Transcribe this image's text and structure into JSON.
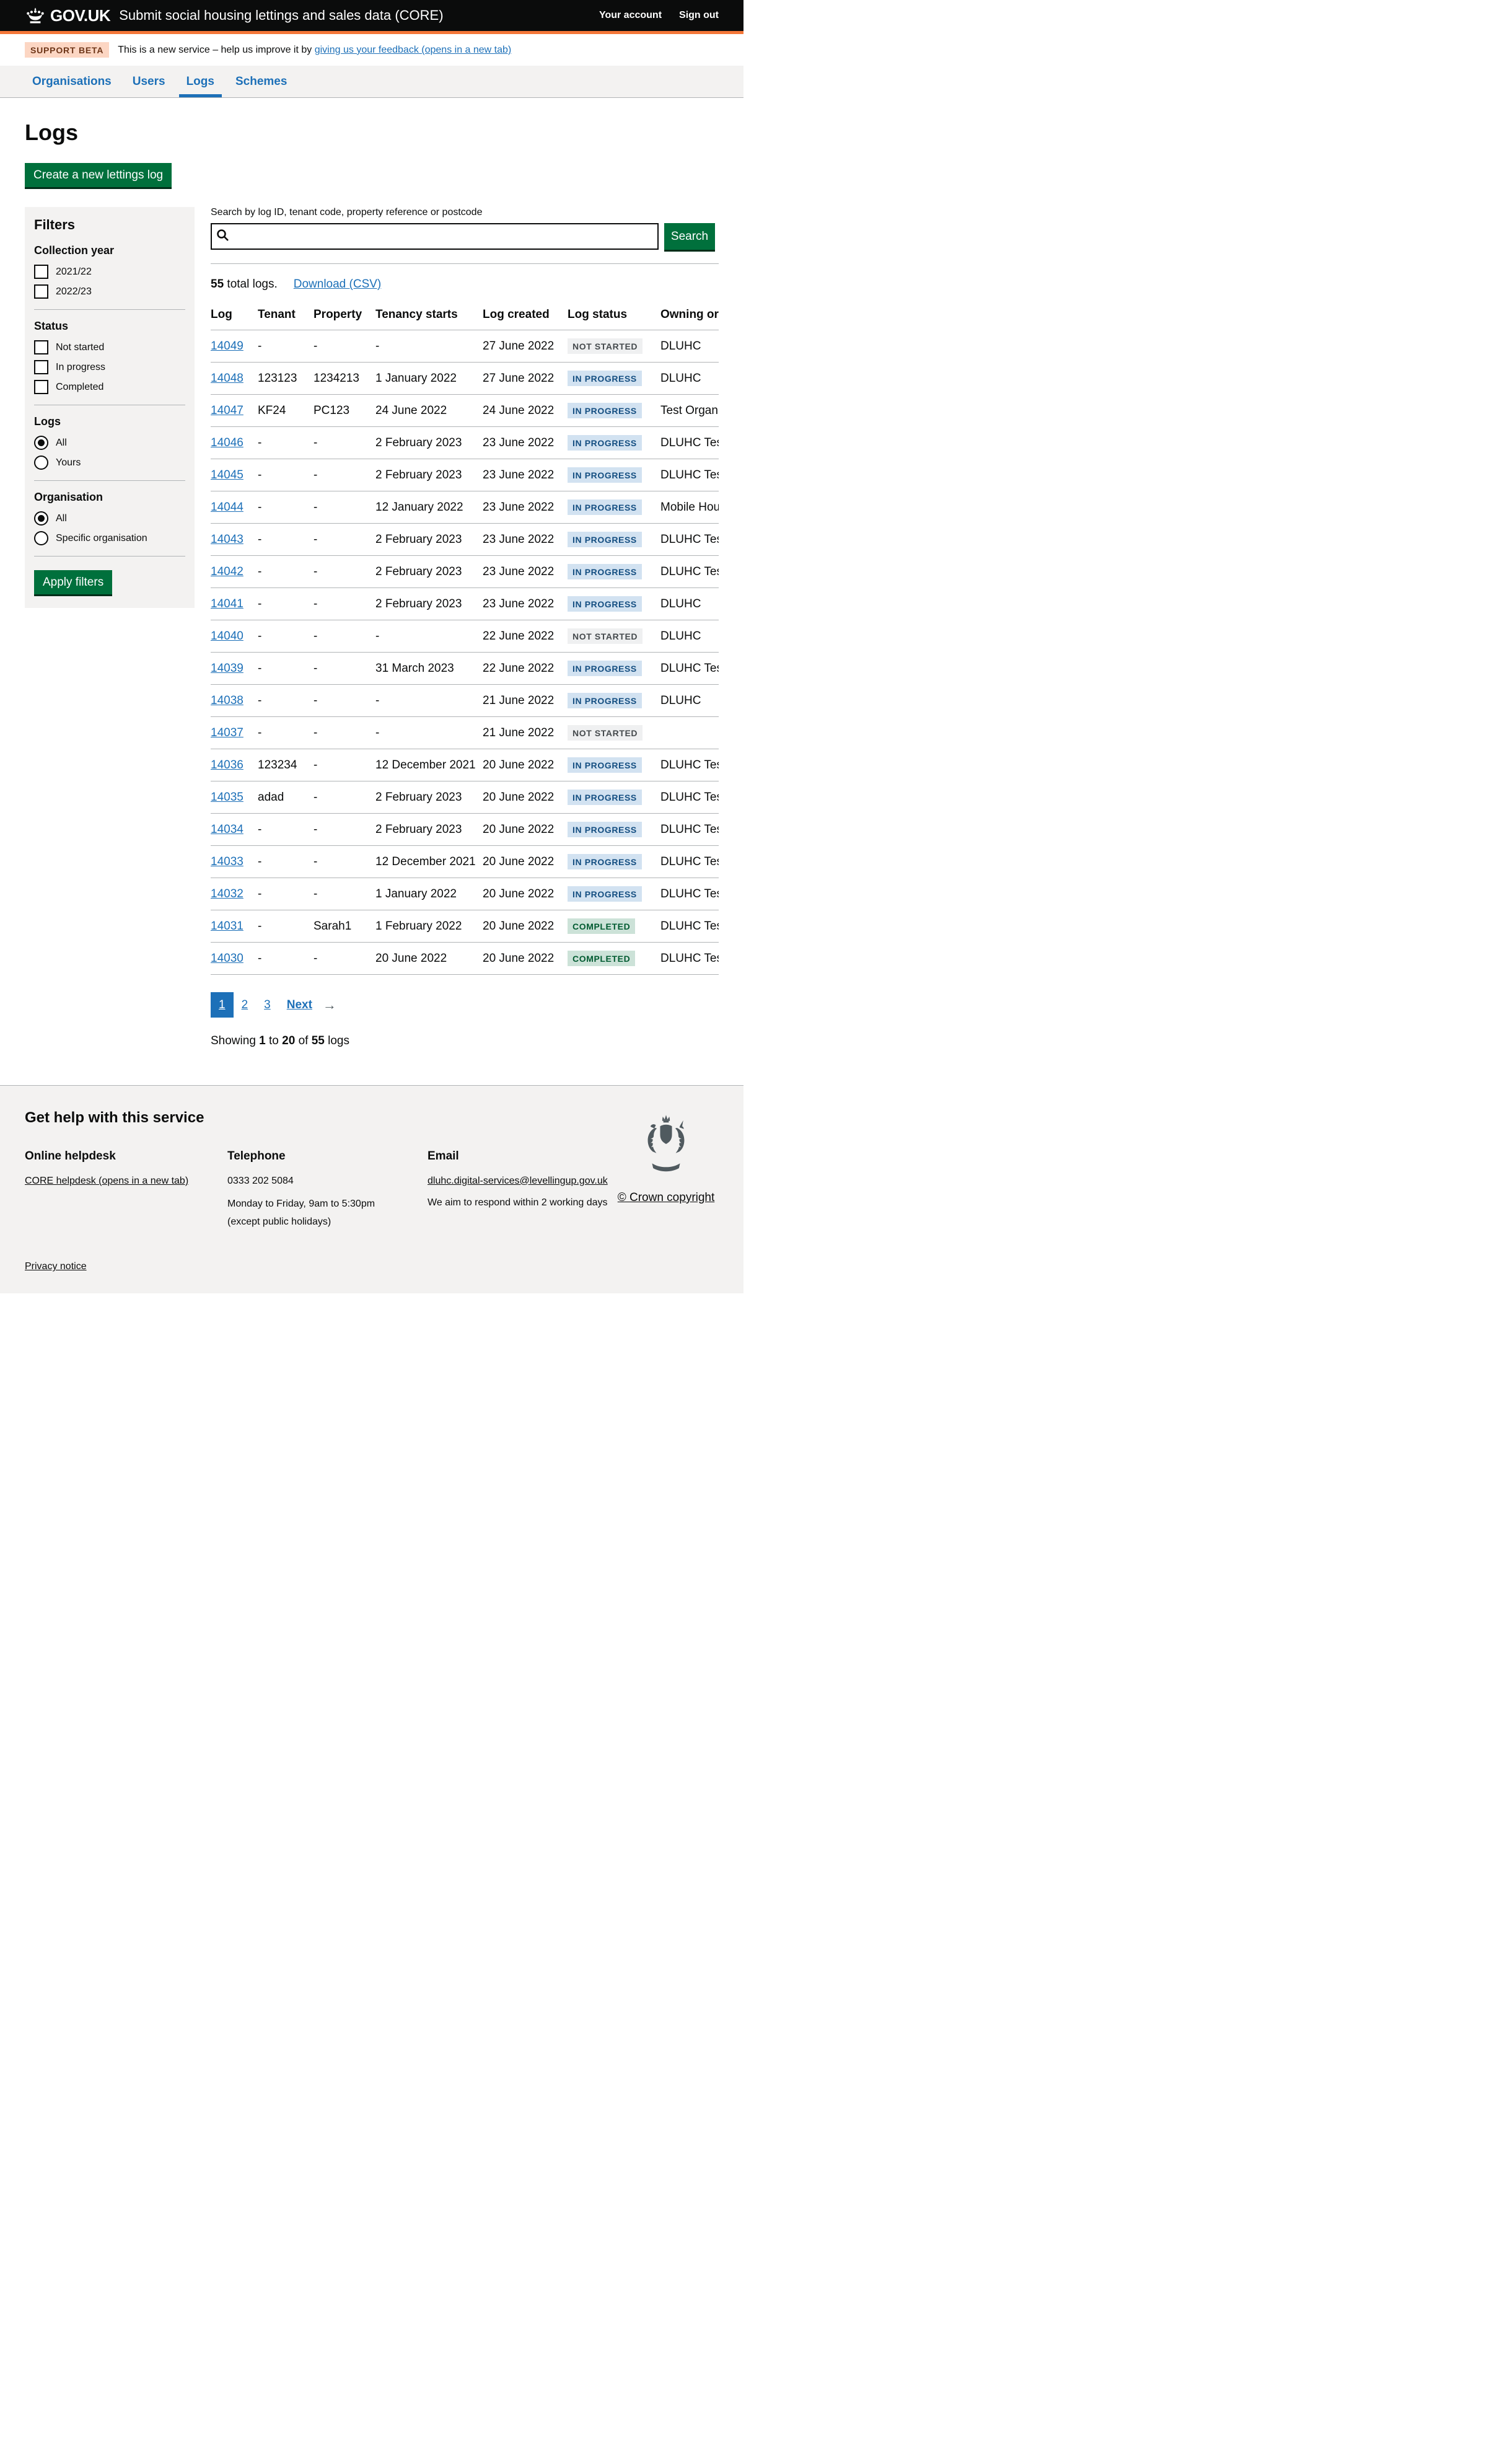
{
  "header": {
    "logo": "GOV.UK",
    "service_name": "Submit social housing lettings and sales data (CORE)",
    "account_link": "Your account",
    "signout_link": "Sign out"
  },
  "phase_banner": {
    "tag": "SUPPORT BETA",
    "text": "This is a new service – help us improve it by ",
    "link_text": "giving us your feedback (opens in a new tab)"
  },
  "nav": {
    "items": [
      {
        "label": "Organisations"
      },
      {
        "label": "Users"
      },
      {
        "label": "Logs"
      },
      {
        "label": "Schemes"
      }
    ]
  },
  "page": {
    "title": "Logs",
    "create_button": "Create a new lettings log"
  },
  "filters": {
    "heading": "Filters",
    "groups": [
      {
        "label": "Collection year",
        "options": [
          {
            "label": "2021/22"
          },
          {
            "label": "2022/23"
          }
        ]
      },
      {
        "label": "Status",
        "options": [
          {
            "label": "Not started"
          },
          {
            "label": "In progress"
          },
          {
            "label": "Completed"
          }
        ]
      },
      {
        "label": "Logs",
        "options": [
          {
            "label": "All"
          },
          {
            "label": "Yours"
          }
        ]
      },
      {
        "label": "Organisation",
        "options": [
          {
            "label": "All"
          },
          {
            "label": "Specific organisation"
          }
        ]
      }
    ],
    "apply_button": "Apply filters"
  },
  "search": {
    "label": "Search by log ID, tenant code, property reference or postcode",
    "value": "",
    "button": "Search"
  },
  "results": {
    "count": "55",
    "count_suffix": " total logs.",
    "download_link": "Download (CSV)"
  },
  "table": {
    "headers": [
      "Log",
      "Tenant",
      "Property",
      "Tenancy starts",
      "Log created",
      "Log status",
      "Owning organisation"
    ],
    "rows": [
      {
        "log": "14049",
        "tenant": "-",
        "property": "-",
        "tenancy_starts": "-",
        "log_created": "27 June 2022",
        "status": {
          "label": "NOT STARTED",
          "type": "grey"
        },
        "owning": "DLUHC"
      },
      {
        "log": "14048",
        "tenant": "123123",
        "property": "1234213",
        "tenancy_starts": "1 January 2022",
        "log_created": "27 June 2022",
        "status": {
          "label": "IN PROGRESS",
          "type": "blue"
        },
        "owning": "DLUHC"
      },
      {
        "log": "14047",
        "tenant": "KF24",
        "property": "PC123",
        "tenancy_starts": "24 June 2022",
        "log_created": "24 June 2022",
        "status": {
          "label": "IN PROGRESS",
          "type": "blue"
        },
        "owning": "Test Organ"
      },
      {
        "log": "14046",
        "tenant": "-",
        "property": "-",
        "tenancy_starts": "2 February 2023",
        "log_created": "23 June 2022",
        "status": {
          "label": "IN PROGRESS",
          "type": "blue"
        },
        "owning": "DLUHC Tes"
      },
      {
        "log": "14045",
        "tenant": "-",
        "property": "-",
        "tenancy_starts": "2 February 2023",
        "log_created": "23 June 2022",
        "status": {
          "label": "IN PROGRESS",
          "type": "blue"
        },
        "owning": "DLUHC Tes"
      },
      {
        "log": "14044",
        "tenant": "-",
        "property": "-",
        "tenancy_starts": "12 January 2022",
        "log_created": "23 June 2022",
        "status": {
          "label": "IN PROGRESS",
          "type": "blue"
        },
        "owning": "Mobile Hou"
      },
      {
        "log": "14043",
        "tenant": "-",
        "property": "-",
        "tenancy_starts": "2 February 2023",
        "log_created": "23 June 2022",
        "status": {
          "label": "IN PROGRESS",
          "type": "blue"
        },
        "owning": "DLUHC Tes"
      },
      {
        "log": "14042",
        "tenant": "-",
        "property": "-",
        "tenancy_starts": "2 February 2023",
        "log_created": "23 June 2022",
        "status": {
          "label": "IN PROGRESS",
          "type": "blue"
        },
        "owning": "DLUHC Tes"
      },
      {
        "log": "14041",
        "tenant": "-",
        "property": "-",
        "tenancy_starts": "2 February 2023",
        "log_created": "23 June 2022",
        "status": {
          "label": "IN PROGRESS",
          "type": "blue"
        },
        "owning": "DLUHC"
      },
      {
        "log": "14040",
        "tenant": "-",
        "property": "-",
        "tenancy_starts": "-",
        "log_created": "22 June 2022",
        "status": {
          "label": "NOT STARTED",
          "type": "grey"
        },
        "owning": "DLUHC"
      },
      {
        "log": "14039",
        "tenant": "-",
        "property": "-",
        "tenancy_starts": "31 March 2023",
        "log_created": "22 June 2022",
        "status": {
          "label": "IN PROGRESS",
          "type": "blue"
        },
        "owning": "DLUHC Tes"
      },
      {
        "log": "14038",
        "tenant": "-",
        "property": "-",
        "tenancy_starts": "-",
        "log_created": "21 June 2022",
        "status": {
          "label": "IN PROGRESS",
          "type": "blue"
        },
        "owning": "DLUHC"
      },
      {
        "log": "14037",
        "tenant": "-",
        "property": "-",
        "tenancy_starts": "-",
        "log_created": "21 June 2022",
        "status": {
          "label": "NOT STARTED",
          "type": "grey"
        },
        "owning": ""
      },
      {
        "log": "14036",
        "tenant": "123234",
        "property": "-",
        "tenancy_starts": "12 December 2021",
        "log_created": "20 June 2022",
        "status": {
          "label": "IN PROGRESS",
          "type": "blue"
        },
        "owning": "DLUHC Tes"
      },
      {
        "log": "14035",
        "tenant": "adad",
        "property": "-",
        "tenancy_starts": "2 February 2023",
        "log_created": "20 June 2022",
        "status": {
          "label": "IN PROGRESS",
          "type": "blue"
        },
        "owning": "DLUHC Tes"
      },
      {
        "log": "14034",
        "tenant": "-",
        "property": "-",
        "tenancy_starts": "2 February 2023",
        "log_created": "20 June 2022",
        "status": {
          "label": "IN PROGRESS",
          "type": "blue"
        },
        "owning": "DLUHC Tes"
      },
      {
        "log": "14033",
        "tenant": "-",
        "property": "-",
        "tenancy_starts": "12 December 2021",
        "log_created": "20 June 2022",
        "status": {
          "label": "IN PROGRESS",
          "type": "blue"
        },
        "owning": "DLUHC Tes"
      },
      {
        "log": "14032",
        "tenant": "-",
        "property": "-",
        "tenancy_starts": "1 January 2022",
        "log_created": "20 June 2022",
        "status": {
          "label": "IN PROGRESS",
          "type": "blue"
        },
        "owning": "DLUHC Tes"
      },
      {
        "log": "14031",
        "tenant": "-",
        "property": "Sarah1",
        "tenancy_starts": "1 February 2022",
        "log_created": "20 June 2022",
        "status": {
          "label": "COMPLETED",
          "type": "green"
        },
        "owning": "DLUHC Tes"
      },
      {
        "log": "14030",
        "tenant": "-",
        "property": "-",
        "tenancy_starts": "20 June 2022",
        "log_created": "20 June 2022",
        "status": {
          "label": "COMPLETED",
          "type": "green"
        },
        "owning": "DLUHC Tes"
      }
    ]
  },
  "pagination": {
    "page1": "1",
    "page2": "2",
    "page3": "3",
    "next": "Next",
    "arrow": "→"
  },
  "showing": {
    "prefix": "Showing ",
    "from": "1",
    "mid1": " to ",
    "to": "20",
    "mid2": " of ",
    "total": "55",
    "suffix": " logs"
  },
  "footer": {
    "heading": "Get help with this service",
    "helpdesk_heading": "Online helpdesk",
    "helpdesk_link": "CORE helpdesk (opens in a new tab)",
    "telephone_heading": "Telephone",
    "telephone_number": "0333 202 5084",
    "telephone_hours_1": "Monday to Friday, 9am to 5:30pm",
    "telephone_hours_2": "(except public holidays)",
    "email_heading": "Email",
    "email_link": "dluhc.digital-services@levellingup.gov.uk",
    "email_note": "We aim to respond within 2 working days",
    "privacy_link": "Privacy notice",
    "copyright": "© Crown copyright"
  },
  "colors": {
    "header_background": "#0b0c0c",
    "header_border_orange": "#f47738",
    "link_blue": "#1d70b8",
    "button_green": "#00703c",
    "panel_grey": "#f3f2f1",
    "tag_blue_bg": "#d2e2f1",
    "tag_blue_text": "#144e81",
    "tag_green_bg": "#cce2d8",
    "tag_green_text": "#005a30",
    "tag_grey_bg": "#eff0f1",
    "tag_grey_text": "#454a4d"
  }
}
